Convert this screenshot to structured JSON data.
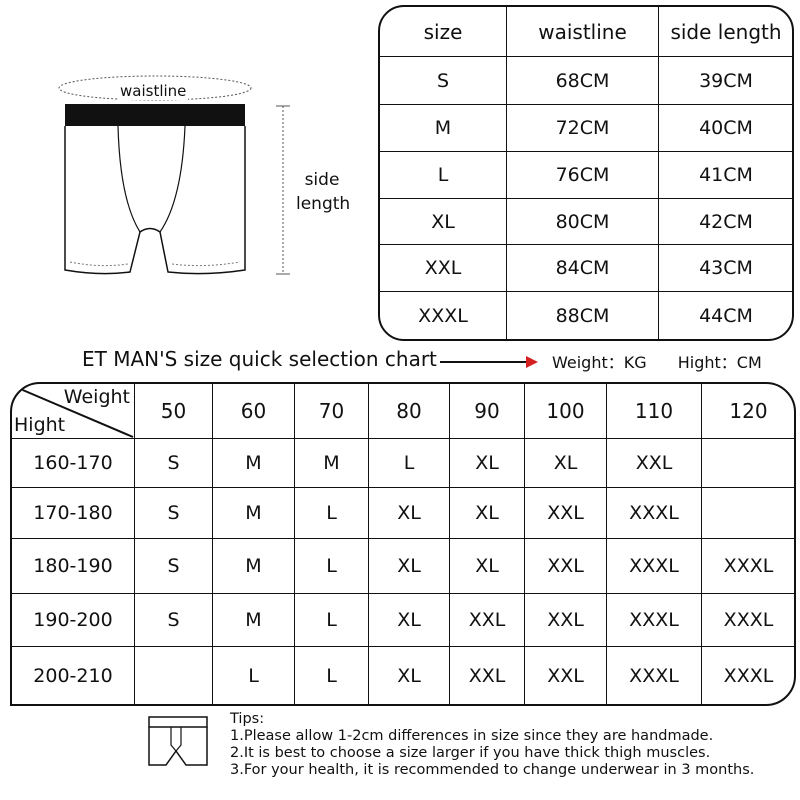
{
  "measure_table": {
    "headers": [
      "size",
      "waistline",
      "side length"
    ],
    "rows": [
      [
        "S",
        "68CM",
        "39CM"
      ],
      [
        "M",
        "72CM",
        "40CM"
      ],
      [
        "L",
        "76CM",
        "41CM"
      ],
      [
        "XL",
        "80CM",
        "42CM"
      ],
      [
        "XXL",
        "84CM",
        "43CM"
      ],
      [
        "XXXL",
        "88CM",
        "44CM"
      ]
    ]
  },
  "diagram": {
    "waistline_label": "waistline",
    "side_label_1": "side",
    "side_label_2": "length"
  },
  "chart_title": "ET MAN'S size quick selection chart",
  "units": {
    "weight": "Weight：KG",
    "height": "Hight：CM"
  },
  "selection_table": {
    "corner_top": "Weight",
    "corner_bottom": "Hight",
    "weights": [
      "50",
      "60",
      "70",
      "80",
      "90",
      "100",
      "110",
      "120"
    ],
    "rows": [
      {
        "height": "160-170",
        "sizes": [
          "S",
          "M",
          "M",
          "L",
          "XL",
          "XL",
          "XXL",
          ""
        ]
      },
      {
        "height": "170-180",
        "sizes": [
          "S",
          "M",
          "L",
          "XL",
          "XL",
          "XXL",
          "XXXL",
          ""
        ]
      },
      {
        "height": "180-190",
        "sizes": [
          "S",
          "M",
          "L",
          "XL",
          "XL",
          "XXL",
          "XXXL",
          "XXXL"
        ]
      },
      {
        "height": "190-200",
        "sizes": [
          "S",
          "M",
          "L",
          "XL",
          "XXL",
          "XXL",
          "XXXL",
          "XXXL"
        ]
      },
      {
        "height": "200-210",
        "sizes": [
          "",
          "L",
          "L",
          "XL",
          "XXL",
          "XXL",
          "XXXL",
          "XXXL"
        ]
      }
    ]
  },
  "tips": {
    "title": "Tips:",
    "items": [
      "1.Please allow 1-2cm differences in size since they are handmade.",
      "2.It is best to choose a size larger if you have thick thigh muscles.",
      "3.For your health, it is recommended to change underwear in 3 months."
    ]
  },
  "colors": {
    "arrow_head": "#d42020",
    "line": "#111111"
  }
}
